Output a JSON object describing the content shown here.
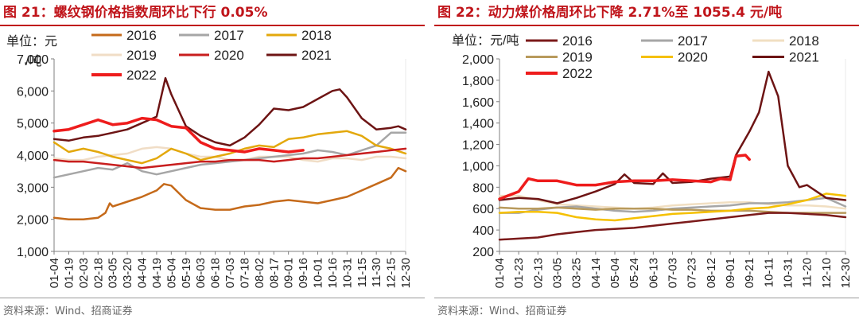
{
  "source_note": "资料来源：Wind、招商证券",
  "colors": {
    "title_red": "#c0151b",
    "s2016_left": "#c56a1a",
    "s2016_right": "#7b1a1a",
    "s2017": "#a6a6a6",
    "s2018_left": "#e3a80c",
    "s2018_right": "#f1dfc2",
    "s2019_left": "#f0ddc6",
    "s2019_right": "#b89a5c",
    "s2020_left": "#c81e1e",
    "s2020_right": "#f5c000",
    "s2021": "#6d1414",
    "s2022": "#ee1c1c"
  },
  "chart_data": [
    {
      "id": "rebar",
      "type": "line",
      "title_prefix": "图 21：",
      "title_text": "螺纹钢价格指数周环比下行 0.05%",
      "unit_label": "单位：元",
      "unit_overlap": "/吨",
      "ylim": [
        1000,
        7000
      ],
      "yticks": [
        1000,
        2000,
        3000,
        4000,
        5000,
        6000,
        7000
      ],
      "ytick_labels": [
        "1,000",
        "2,000",
        "3,000",
        "4,000",
        "5,000",
        "6,000",
        "7,000"
      ],
      "xlabels": [
        "01-04",
        "01-19",
        "02-03",
        "02-18",
        "03-05",
        "03-20",
        "04-04",
        "04-19",
        "05-04",
        "05-19",
        "06-03",
        "06-18",
        "07-03",
        "07-18",
        "08-02",
        "08-17",
        "09-01",
        "09-16",
        "10-01",
        "10-16",
        "10-31",
        "11-15",
        "11-30",
        "12-15",
        "12-30"
      ],
      "legend": [
        {
          "name": "2016",
          "color": "#c56a1a",
          "width": 2.5
        },
        {
          "name": "2017",
          "color": "#a6a6a6",
          "width": 2.5
        },
        {
          "name": "2018",
          "color": "#e3a80c",
          "width": 2.5
        },
        {
          "name": "2019",
          "color": "#f0ddc6",
          "width": 2.5
        },
        {
          "name": "2020",
          "color": "#c81e1e",
          "width": 2.5
        },
        {
          "name": "2021",
          "color": "#6d1414",
          "width": 2.5
        },
        {
          "name": "2022",
          "color": "#ee1c1c",
          "width": 3.5
        }
      ],
      "series": [
        {
          "name": "2019",
          "x": [
            0,
            1,
            2,
            3,
            4,
            5,
            6,
            7,
            8,
            9,
            10,
            11,
            12,
            13,
            14,
            15,
            16,
            17,
            18,
            19,
            20,
            21,
            22,
            23,
            24
          ],
          "values": [
            3900,
            3850,
            3850,
            3950,
            4000,
            4050,
            4200,
            4250,
            4200,
            4050,
            3950,
            3950,
            3850,
            3850,
            3950,
            3950,
            3950,
            3850,
            3800,
            3900,
            3900,
            3850,
            3950,
            3950,
            3900
          ]
        },
        {
          "name": "2017",
          "x": [
            0,
            1,
            2,
            3,
            4,
            5,
            6,
            7,
            8,
            9,
            10,
            11,
            12,
            13,
            14,
            15,
            16,
            17,
            18,
            19,
            20,
            21,
            22,
            23,
            24
          ],
          "values": [
            3300,
            3400,
            3500,
            3600,
            3550,
            3750,
            3500,
            3400,
            3500,
            3600,
            3700,
            3750,
            3800,
            3850,
            3900,
            3950,
            4000,
            4050,
            4150,
            4100,
            4000,
            4150,
            4300,
            4700,
            4700
          ]
        },
        {
          "name": "2016",
          "x": [
            0,
            1,
            2,
            3,
            3.5,
            3.8,
            4,
            5,
            6,
            7,
            7.5,
            8,
            9,
            10,
            11,
            12,
            13,
            14,
            15,
            16,
            17,
            18,
            19,
            20,
            21,
            22,
            23,
            23.5,
            24
          ],
          "values": [
            2050,
            2000,
            2000,
            2050,
            2200,
            2500,
            2400,
            2550,
            2700,
            2900,
            3100,
            3050,
            2600,
            2350,
            2300,
            2300,
            2400,
            2450,
            2550,
            2600,
            2550,
            2500,
            2600,
            2700,
            2900,
            3100,
            3300,
            3600,
            3500
          ]
        },
        {
          "name": "2018",
          "x": [
            0,
            1,
            2,
            3,
            4,
            5,
            6,
            7,
            8,
            9,
            10,
            11,
            12,
            13,
            14,
            15,
            16,
            17,
            18,
            19,
            20,
            21,
            22,
            23,
            24
          ],
          "values": [
            4400,
            4100,
            4200,
            4100,
            3950,
            3850,
            3750,
            3900,
            4200,
            4050,
            3850,
            3950,
            4050,
            4200,
            4300,
            4250,
            4500,
            4550,
            4650,
            4700,
            4750,
            4600,
            4300,
            4200,
            4050
          ]
        },
        {
          "name": "2020",
          "x": [
            0,
            1,
            2,
            3,
            4,
            5,
            6,
            7,
            8,
            9,
            10,
            11,
            12,
            13,
            14,
            15,
            16,
            17,
            18,
            19,
            20,
            21,
            22,
            23,
            24
          ],
          "values": [
            3850,
            3800,
            3800,
            3750,
            3700,
            3650,
            3600,
            3650,
            3700,
            3750,
            3800,
            3800,
            3850,
            3850,
            3850,
            3800,
            3850,
            3900,
            3900,
            3950,
            4000,
            4050,
            4100,
            4150,
            4200
          ]
        },
        {
          "name": "2021",
          "x": [
            0,
            1,
            2,
            3,
            4,
            5,
            6,
            7,
            7.6,
            8,
            8.5,
            9,
            10,
            11,
            12,
            13,
            14,
            15,
            16,
            17,
            18,
            19,
            19.5,
            20,
            21,
            22,
            23,
            23.5,
            24
          ],
          "values": [
            4500,
            4450,
            4550,
            4600,
            4700,
            4800,
            5000,
            5200,
            6400,
            5900,
            5400,
            4900,
            4600,
            4400,
            4300,
            4550,
            4950,
            5450,
            5400,
            5500,
            5750,
            6000,
            6050,
            5800,
            5150,
            4800,
            4850,
            4900,
            4800
          ]
        },
        {
          "name": "2022",
          "x": [
            0,
            1,
            2,
            3,
            4,
            5,
            6,
            7,
            8,
            9,
            10,
            11,
            12,
            13,
            14,
            15,
            16,
            17
          ],
          "values": [
            4750,
            4800,
            4950,
            5100,
            4950,
            5000,
            5150,
            5100,
            4900,
            4850,
            4400,
            4200,
            4150,
            4100,
            4200,
            4150,
            4100,
            4150
          ]
        }
      ]
    },
    {
      "id": "coal",
      "type": "line",
      "title_prefix": "图 22：",
      "title_text": "动力煤价格周环比下降 2.71%至 1055.4 元/吨",
      "unit_label": "单位：元/吨",
      "ylim": [
        200,
        2000
      ],
      "yticks": [
        200,
        400,
        600,
        800,
        1000,
        1200,
        1400,
        1600,
        1800,
        2000
      ],
      "ytick_labels": [
        "200",
        "400",
        "600",
        "800",
        "1,000",
        "1,200",
        "1,400",
        "1,600",
        "1,800",
        "2,000"
      ],
      "xlabels": [
        "01-04",
        "01-23",
        "02-13",
        "03-05",
        "03-25",
        "04-14",
        "05-04",
        "05-24",
        "06-13",
        "07-03",
        "07-23",
        "08-12",
        "09-01",
        "09-21",
        "10-11",
        "10-31",
        "11-20",
        "12-10",
        "12-30"
      ],
      "legend": [
        {
          "name": "2016",
          "color": "#7b1a1a",
          "width": 2.5
        },
        {
          "name": "2017",
          "color": "#a6a6a6",
          "width": 2.5
        },
        {
          "name": "2018",
          "color": "#f1dfc2",
          "width": 2.5
        },
        {
          "name": "2019",
          "color": "#b89a5c",
          "width": 2.5
        },
        {
          "name": "2020",
          "color": "#f5c000",
          "width": 2.5
        },
        {
          "name": "2021",
          "color": "#6d1414",
          "width": 2.5
        },
        {
          "name": "2022",
          "color": "#ee1c1c",
          "width": 3.5
        }
      ],
      "series": [
        {
          "name": "2018",
          "x": [
            0,
            1,
            2,
            3,
            4,
            5,
            6,
            7,
            8,
            9,
            10,
            11,
            12,
            13,
            14,
            15,
            16,
            17,
            18
          ],
          "values": [
            720,
            720,
            680,
            640,
            630,
            620,
            610,
            600,
            610,
            630,
            640,
            650,
            660,
            660,
            640,
            630,
            630,
            620,
            600
          ]
        },
        {
          "name": "2017",
          "x": [
            0,
            1,
            2,
            3,
            4,
            5,
            6,
            7,
            8,
            9,
            10,
            11,
            12,
            13,
            14,
            15,
            16,
            17,
            18
          ],
          "values": [
            560,
            560,
            590,
            610,
            620,
            600,
            580,
            570,
            580,
            600,
            610,
            620,
            630,
            650,
            650,
            660,
            680,
            700,
            620
          ]
        },
        {
          "name": "2019",
          "x": [
            0,
            1,
            2,
            3,
            4,
            5,
            6,
            7,
            8,
            9,
            10,
            11,
            12,
            13,
            14,
            15,
            16,
            17,
            18
          ],
          "values": [
            610,
            600,
            600,
            610,
            600,
            590,
            600,
            600,
            600,
            590,
            590,
            580,
            580,
            580,
            570,
            560,
            560,
            560,
            560
          ]
        },
        {
          "name": "2020",
          "x": [
            0,
            1,
            2,
            3,
            4,
            5,
            6,
            7,
            8,
            9,
            10,
            11,
            12,
            13,
            14,
            15,
            16,
            17,
            18
          ],
          "values": [
            560,
            570,
            570,
            560,
            520,
            500,
            490,
            510,
            530,
            550,
            560,
            570,
            580,
            600,
            610,
            640,
            680,
            740,
            720
          ]
        },
        {
          "name": "2016",
          "x": [
            0,
            1,
            2,
            3,
            4,
            5,
            6,
            7,
            8,
            9,
            10,
            11,
            12,
            13,
            14,
            15,
            16,
            17,
            18
          ],
          "values": [
            310,
            320,
            330,
            360,
            380,
            400,
            410,
            420,
            440,
            460,
            480,
            500,
            520,
            540,
            560,
            560,
            550,
            540,
            520
          ]
        },
        {
          "name": "2021",
          "x": [
            0,
            1,
            2,
            3,
            4,
            5,
            6,
            6.5,
            7,
            8,
            8.5,
            9,
            10,
            11,
            12,
            12.3,
            13,
            13.5,
            14,
            14.5,
            15,
            15.3,
            15.6,
            16,
            17,
            18
          ],
          "values": [
            680,
            700,
            690,
            650,
            700,
            760,
            830,
            920,
            840,
            830,
            930,
            840,
            850,
            880,
            900,
            1100,
            1320,
            1500,
            1880,
            1650,
            1000,
            900,
            800,
            820,
            700,
            680
          ]
        },
        {
          "name": "2022",
          "x": [
            0,
            1,
            1.5,
            2,
            3,
            4,
            5,
            6,
            7,
            8,
            9,
            10,
            11,
            11.5,
            12,
            12.3,
            12.8,
            13
          ],
          "values": [
            690,
            760,
            880,
            860,
            860,
            820,
            820,
            850,
            860,
            860,
            870,
            860,
            850,
            880,
            870,
            1090,
            1100,
            1060
          ]
        }
      ]
    }
  ]
}
